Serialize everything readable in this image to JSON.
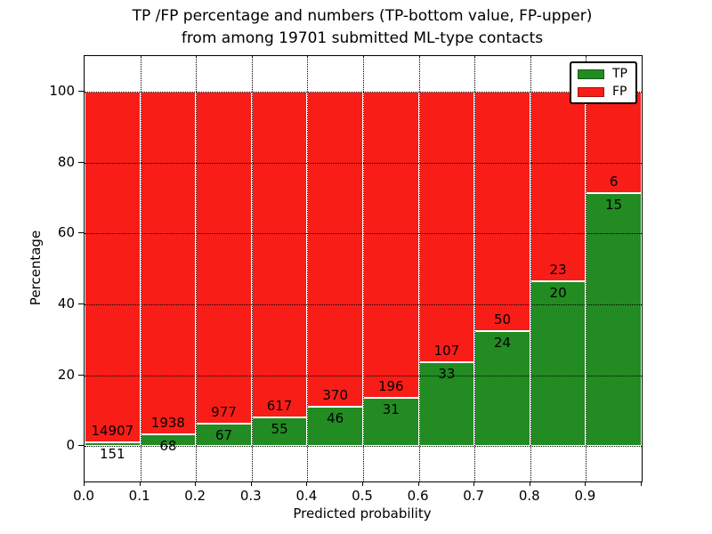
{
  "chart_data": {
    "type": "bar",
    "stacked": true,
    "title_line1": "TP /FP percentage and numbers (TP-bottom value, FP-upper)",
    "title_line2": "from among 19701 submitted ML-type contacts",
    "xlabel": "Predicted probability",
    "ylabel": "Percentage",
    "x_tick_labels": [
      "0.0",
      "0.1",
      "0.2",
      "0.3",
      "0.4",
      "0.5",
      "0.6",
      "0.7",
      "0.8",
      "0.9"
    ],
    "y_ticks": [
      0,
      20,
      40,
      60,
      80,
      100
    ],
    "xlim": [
      0.0,
      1.0
    ],
    "ylim": [
      -10,
      110
    ],
    "bar_width": 0.1,
    "bin_edges": [
      0.0,
      0.1,
      0.2,
      0.3,
      0.4,
      0.5,
      0.6,
      0.7,
      0.8,
      0.9,
      1.0
    ],
    "series": [
      {
        "name": "TP",
        "color": "#228b22",
        "counts": [
          151,
          68,
          67,
          55,
          46,
          31,
          33,
          24,
          20,
          15
        ],
        "pct": [
          1.0,
          3.39,
          6.42,
          8.18,
          11.06,
          13.66,
          23.57,
          32.43,
          46.51,
          71.43
        ]
      },
      {
        "name": "FP",
        "color": "#f91d18",
        "counts": [
          14907,
          1938,
          977,
          617,
          370,
          196,
          107,
          50,
          23,
          6
        ],
        "pct": [
          99.0,
          96.61,
          93.58,
          91.82,
          88.94,
          86.34,
          76.43,
          67.57,
          53.49,
          28.57
        ]
      }
    ],
    "grid": "dotted both axes, drawn over bars",
    "bar_edge_color": "#ffffff",
    "legend_position": "upper right",
    "total_label": "19701"
  }
}
